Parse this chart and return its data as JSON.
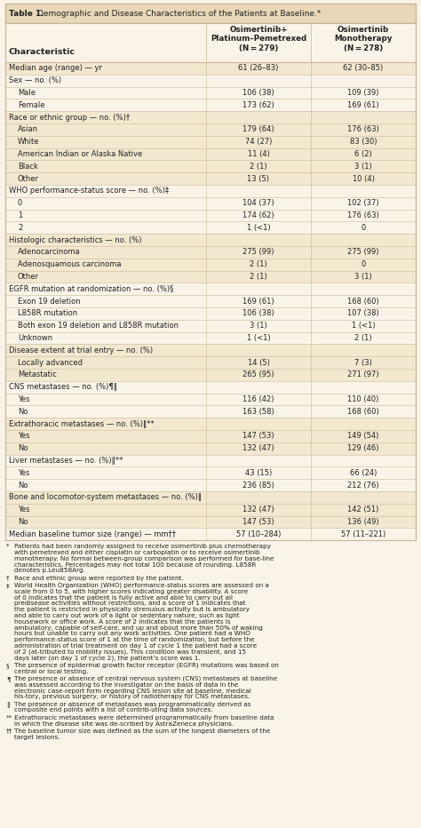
{
  "title": "Table 1. Demographic and Disease Characteristics of the Patients at Baseline.*",
  "col2_header": "Osimertinib+\nPlatinum–Pemetrexed\n(N = 279)",
  "col3_header": "Osimertinib\nMonotherapy\n(N = 278)",
  "rows": [
    {
      "label": "Median age (range) — yr",
      "indent": 0,
      "col2": "61 (26–83)",
      "col3": "62 (30–85)",
      "shaded": true,
      "section": false
    },
    {
      "label": "Sex — no. (%)",
      "indent": 0,
      "col2": "",
      "col3": "",
      "shaded": false,
      "section": true
    },
    {
      "label": "Male",
      "indent": 1,
      "col2": "106 (38)",
      "col3": "109 (39)",
      "shaded": false,
      "section": false
    },
    {
      "label": "Female",
      "indent": 1,
      "col2": "173 (62)",
      "col3": "169 (61)",
      "shaded": false,
      "section": false
    },
    {
      "label": "Race or ethnic group — no. (%)†",
      "indent": 0,
      "col2": "",
      "col3": "",
      "shaded": true,
      "section": true
    },
    {
      "label": "Asian",
      "indent": 1,
      "col2": "179 (64)",
      "col3": "176 (63)",
      "shaded": true,
      "section": false
    },
    {
      "label": "White",
      "indent": 1,
      "col2": "74 (27)",
      "col3": "83 (30)",
      "shaded": true,
      "section": false
    },
    {
      "label": "American Indian or Alaska Native",
      "indent": 1,
      "col2": "11 (4)",
      "col3": "6 (2)",
      "shaded": true,
      "section": false
    },
    {
      "label": "Black",
      "indent": 1,
      "col2": "2 (1)",
      "col3": "3 (1)",
      "shaded": true,
      "section": false
    },
    {
      "label": "Other",
      "indent": 1,
      "col2": "13 (5)",
      "col3": "10 (4)",
      "shaded": true,
      "section": false
    },
    {
      "label": "WHO performance-status score — no. (%)‡",
      "indent": 0,
      "col2": "",
      "col3": "",
      "shaded": false,
      "section": true
    },
    {
      "label": "0",
      "indent": 1,
      "col2": "104 (37)",
      "col3": "102 (37)",
      "shaded": false,
      "section": false
    },
    {
      "label": "1",
      "indent": 1,
      "col2": "174 (62)",
      "col3": "176 (63)",
      "shaded": false,
      "section": false
    },
    {
      "label": "2",
      "indent": 1,
      "col2": "1 (<1)",
      "col3": "0",
      "shaded": false,
      "section": false
    },
    {
      "label": "Histologic characteristics — no. (%)",
      "indent": 0,
      "col2": "",
      "col3": "",
      "shaded": true,
      "section": true
    },
    {
      "label": "Adenocarcinoma",
      "indent": 1,
      "col2": "275 (99)",
      "col3": "275 (99)",
      "shaded": true,
      "section": false
    },
    {
      "label": "Adenosquamous carcinoma",
      "indent": 1,
      "col2": "2 (1)",
      "col3": "0",
      "shaded": true,
      "section": false
    },
    {
      "label": "Other",
      "indent": 1,
      "col2": "2 (1)",
      "col3": "3 (1)",
      "shaded": true,
      "section": false
    },
    {
      "label": "EGFR mutation at randomization — no. (%)§",
      "indent": 0,
      "col2": "",
      "col3": "",
      "shaded": false,
      "section": true
    },
    {
      "label": "Exon 19 deletion",
      "indent": 1,
      "col2": "169 (61)",
      "col3": "168 (60)",
      "shaded": false,
      "section": false
    },
    {
      "label": "L858R mutation",
      "indent": 1,
      "col2": "106 (38)",
      "col3": "107 (38)",
      "shaded": false,
      "section": false
    },
    {
      "label": "Both exon 19 deletion and L858R mutation",
      "indent": 1,
      "col2": "3 (1)",
      "col3": "1 (<1)",
      "shaded": false,
      "section": false
    },
    {
      "label": "Unknown",
      "indent": 1,
      "col2": "1 (<1)",
      "col3": "2 (1)",
      "shaded": false,
      "section": false
    },
    {
      "label": "Disease extent at trial entry — no. (%)",
      "indent": 0,
      "col2": "",
      "col3": "",
      "shaded": true,
      "section": true
    },
    {
      "label": "Locally advanced",
      "indent": 1,
      "col2": "14 (5)",
      "col3": "7 (3)",
      "shaded": true,
      "section": false
    },
    {
      "label": "Metastatic",
      "indent": 1,
      "col2": "265 (95)",
      "col3": "271 (97)",
      "shaded": true,
      "section": false
    },
    {
      "label": "CNS metastases — no. (%)¶‖",
      "indent": 0,
      "col2": "",
      "col3": "",
      "shaded": false,
      "section": true
    },
    {
      "label": "Yes",
      "indent": 1,
      "col2": "116 (42)",
      "col3": "110 (40)",
      "shaded": false,
      "section": false
    },
    {
      "label": "No",
      "indent": 1,
      "col2": "163 (58)",
      "col3": "168 (60)",
      "shaded": false,
      "section": false
    },
    {
      "label": "Extrathoracic metastases — no. (%)‖**",
      "indent": 0,
      "col2": "",
      "col3": "",
      "shaded": true,
      "section": true
    },
    {
      "label": "Yes",
      "indent": 1,
      "col2": "147 (53)",
      "col3": "149 (54)",
      "shaded": true,
      "section": false
    },
    {
      "label": "No",
      "indent": 1,
      "col2": "132 (47)",
      "col3": "129 (46)",
      "shaded": true,
      "section": false
    },
    {
      "label": "Liver metastases — no. (%)‖**",
      "indent": 0,
      "col2": "",
      "col3": "",
      "shaded": false,
      "section": true
    },
    {
      "label": "Yes",
      "indent": 1,
      "col2": "43 (15)",
      "col3": "66 (24)",
      "shaded": false,
      "section": false
    },
    {
      "label": "No",
      "indent": 1,
      "col2": "236 (85)",
      "col3": "212 (76)",
      "shaded": false,
      "section": false
    },
    {
      "label": "Bone and locomotor-system metastases — no. (%)‖",
      "indent": 0,
      "col2": "",
      "col3": "",
      "shaded": true,
      "section": true
    },
    {
      "label": "Yes",
      "indent": 1,
      "col2": "132 (47)",
      "col3": "142 (51)",
      "shaded": true,
      "section": false
    },
    {
      "label": "No",
      "indent": 1,
      "col2": "147 (53)",
      "col3": "136 (49)",
      "shaded": true,
      "section": false
    },
    {
      "label": "Median baseline tumor size (range) — mm††",
      "indent": 0,
      "col2": "57 (10–284)",
      "col3": "57 (11–221)",
      "shaded": false,
      "section": false
    }
  ],
  "footnotes": [
    {
      "symbol": "*",
      "text": "Patients had been randomly assigned to receive osimertinib plus chemotherapy with pemetrexed and either cisplatin or carboplatin or to receive osimertinib monotherapy. No formal between-group comparison was performed for base-line characteristics. Percentages may not total 100 because of rounding. L858R denotes p.Leu858Arg."
    },
    {
      "symbol": "†",
      "text": "Race and ethnic group were reported by the patient."
    },
    {
      "symbol": "‡",
      "text": "World Health Organization (WHO) performance-status scores are assessed on a scale from 0 to 5, with higher scores indicating greater disability. A score of 0 indicates that the patient is fully active and able to carry out all predisease activities without restrictions, and a score of 1 indicates that the patient is restricted in physically strenuous activity but is ambulatory and able to carry out work of a light or sedentary nature, such as light housework or office work. A score of 2 indicates that the patients is ambulatory, capable of self-care, and up and about more than 50% of waking hours but unable to carry out any work activities. One patient had a WHO performance-status score of 1 at the time of randomization, but before the administration of trial treatment on day 1 of cycle 1 the patient had a score of 2 (at-tributed to mobility issues). This condition was transient, and 15 days later (on day 1 of cycle 2), the patient’s score was 1."
    },
    {
      "symbol": "§",
      "text": "The presence of epidermal growth factor receptor (EGFR) mutations was based on central or local testing."
    },
    {
      "symbol": "¶",
      "text": "The presence or absence of central nervous system (CNS) metastases at baseline was assessed according to the investigator on the basis of data in the electronic case-report form regarding CNS lesion site at baseline, medical his-tory, previous surgery, or history of radiotherapy for CNS metastases."
    },
    {
      "symbol": "‖",
      "text": "The presence or absence of metastases was programmatically derived as composite end points with a list of contrib-uting data sources."
    },
    {
      "symbol": "**",
      "text": "Extrathoracic metastases were determined programmatically from baseline data in which the disease site was de-scribed by AstraZeneca physicians."
    },
    {
      "symbol": "††",
      "text": "The baseline tumor size was defined as the sum of the longest diameters of the target lesions."
    }
  ],
  "bg_color": "#faf4e8",
  "shaded_color": "#f2e8d0",
  "white_color": "#faf4e8",
  "border_color": "#c8b89a",
  "title_bg": "#e8d8b8",
  "text_color": "#222222",
  "title_color": "#222222"
}
